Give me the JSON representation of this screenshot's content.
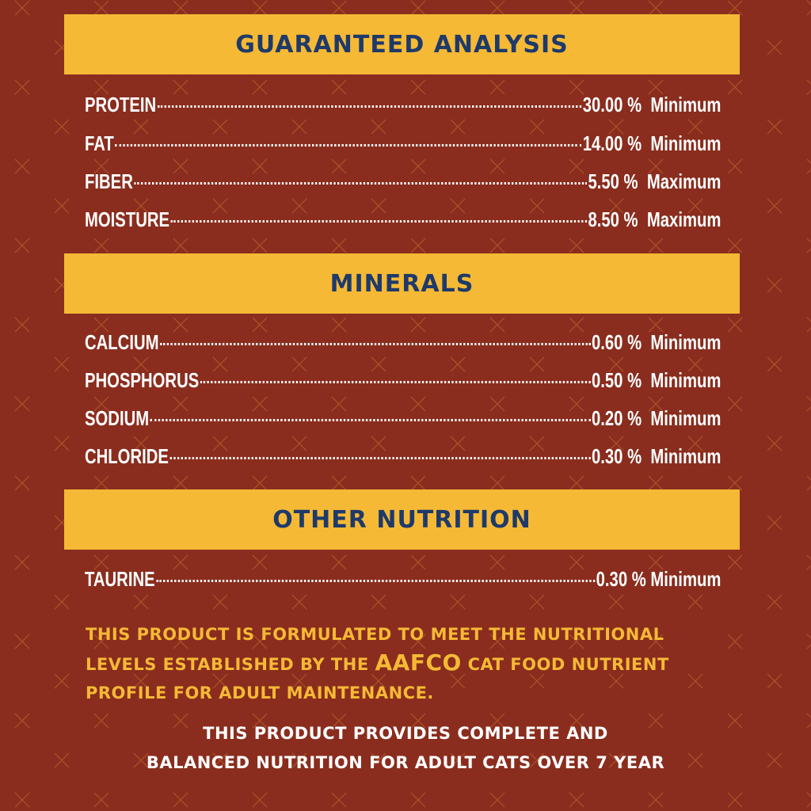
{
  "colors": {
    "background": "#8a2d1e",
    "banner": "#f5b935",
    "banner_text": "#1e3a6a",
    "note_text": "#f5b935",
    "pattern": "#c0652f"
  },
  "sections": [
    {
      "title": "GUARANTEED ANALYSIS",
      "rows": [
        {
          "label": "PROTEIN",
          "value": "30.00 %  Minimum"
        },
        {
          "label": "FAT",
          "value": "14.00 %  Minimum"
        },
        {
          "label": "FIBER",
          "value": "5.50 %  Maximum"
        },
        {
          "label": "MOISTURE",
          "value": "8.50 %  Maximum"
        }
      ]
    },
    {
      "title": "MINERALS",
      "rows": [
        {
          "label": "CALCIUM",
          "value": "0.60 %  Minimum"
        },
        {
          "label": "PHOSPHORUS",
          "value": "0.50 %  Minimum"
        },
        {
          "label": "SODIUM",
          "value": "0.20 %  Minimum"
        },
        {
          "label": "CHLORIDE",
          "value": "0.30 %  Minimum"
        }
      ]
    },
    {
      "title": "OTHER NUTRITION",
      "rows": [
        {
          "label": "TAURINE",
          "value": "0.30 % Minimum"
        }
      ]
    }
  ],
  "note": {
    "part1": "THIS PRODUCT IS FORMULATED TO MEET THE NUTRITIONAL LEVELS ESTABLISHED BY THE ",
    "emphasis": "AAFCO",
    "part2": " CAT FOOD NUTRIENT PROFILE FOR ADULT MAINTENANCE."
  },
  "final": {
    "line1": "THIS PRODUCT PROVIDES COMPLETE AND",
    "line2": "BALANCED NUTRITION FOR ADULT CATS OVER 7 YEAR"
  }
}
